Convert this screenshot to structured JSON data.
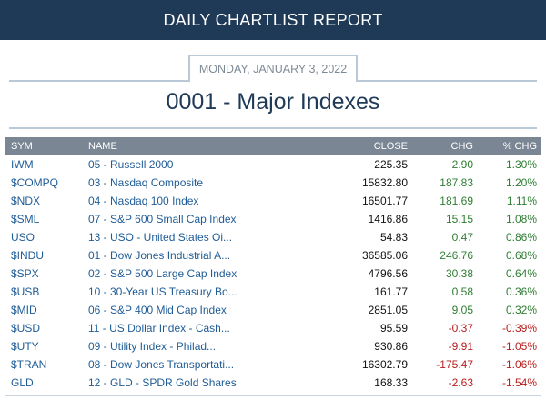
{
  "header": {
    "title": "DAILY CHARTLIST REPORT"
  },
  "report": {
    "date": "MONDAY, JANUARY 3, 2022",
    "title": "0001 - Major Indexes"
  },
  "colors": {
    "header_bg": "#1f3a57",
    "table_header_bg": "#7a8694",
    "positive": "#2e7d32",
    "negative": "#b71c1c",
    "link": "#1f5c96"
  },
  "table": {
    "columns": [
      "SYM",
      "NAME",
      "CLOSE",
      "CHG",
      "% CHG"
    ],
    "rows": [
      {
        "sym": "IWM",
        "name": "05 - Russell 2000",
        "close": "225.35",
        "chg": "2.90",
        "pct": "1.30%",
        "dir": "pos"
      },
      {
        "sym": "$COMPQ",
        "name": "03 - Nasdaq Composite",
        "close": "15832.80",
        "chg": "187.83",
        "pct": "1.20%",
        "dir": "pos"
      },
      {
        "sym": "$NDX",
        "name": "04 - Nasdaq 100 Index",
        "close": "16501.77",
        "chg": "181.69",
        "pct": "1.11%",
        "dir": "pos"
      },
      {
        "sym": "$SML",
        "name": "07 - S&P 600 Small Cap Index",
        "close": "1416.86",
        "chg": "15.15",
        "pct": "1.08%",
        "dir": "pos"
      },
      {
        "sym": "USO",
        "name": "13 - USO - United States Oi...",
        "close": "54.83",
        "chg": "0.47",
        "pct": "0.86%",
        "dir": "pos"
      },
      {
        "sym": "$INDU",
        "name": "01 - Dow Jones Industrial A...",
        "close": "36585.06",
        "chg": "246.76",
        "pct": "0.68%",
        "dir": "pos"
      },
      {
        "sym": "$SPX",
        "name": "02 - S&P 500 Large Cap Index",
        "close": "4796.56",
        "chg": "30.38",
        "pct": "0.64%",
        "dir": "pos"
      },
      {
        "sym": "$USB",
        "name": "10 - 30-Year US Treasury Bo...",
        "close": "161.77",
        "chg": "0.58",
        "pct": "0.36%",
        "dir": "pos"
      },
      {
        "sym": "$MID",
        "name": "06 - S&P 400 Mid Cap Index",
        "close": "2851.05",
        "chg": "9.05",
        "pct": "0.32%",
        "dir": "pos"
      },
      {
        "sym": "$USD",
        "name": "11 - US Dollar Index - Cash...",
        "close": "95.59",
        "chg": "-0.37",
        "pct": "-0.39%",
        "dir": "neg"
      },
      {
        "sym": "$UTY",
        "name": "09 - Utility Index - Philad...",
        "close": "930.86",
        "chg": "-9.91",
        "pct": "-1.05%",
        "dir": "neg"
      },
      {
        "sym": "$TRAN",
        "name": "08 - Dow Jones Transportati...",
        "close": "16302.79",
        "chg": "-175.47",
        "pct": "-1.06%",
        "dir": "neg"
      },
      {
        "sym": "GLD",
        "name": "12 - GLD - SPDR Gold Shares",
        "close": "168.33",
        "chg": "-2.63",
        "pct": "-1.54%",
        "dir": "neg"
      }
    ]
  }
}
